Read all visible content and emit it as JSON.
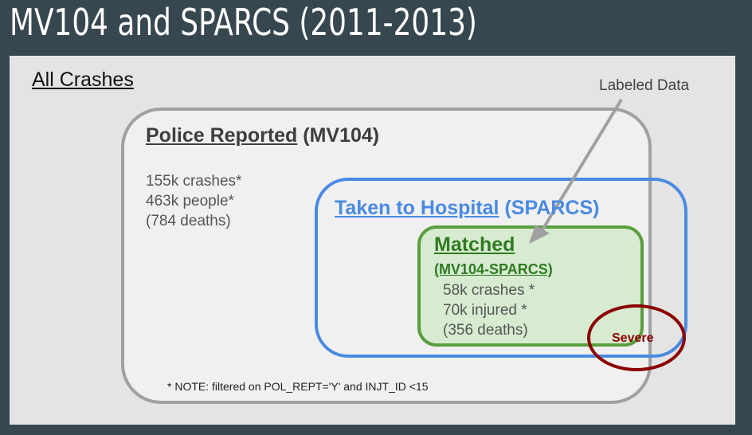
{
  "title": "MV104 and SPARCS (2011-2013)",
  "all_crashes": "All Crashes",
  "police": {
    "title_underlined": "Police Reported",
    "title_rest": " (MV104)",
    "stats": [
      "155k crashes*",
      "463k people*",
      "(784 deaths)"
    ]
  },
  "hospital": {
    "title_underlined": "Taken to Hospital",
    "title_rest": " (SPARCS)"
  },
  "matched": {
    "title": "Matched",
    "subtitle": "(MV104-SPARCS)",
    "stats": [
      "58k crashes *",
      "70k injured *",
      "(356 deaths)"
    ]
  },
  "labeled_data": "Labeled Data",
  "severe": "Severe",
  "note": "* NOTE: filtered on POL_REPT='Y' and INJT_ID <15",
  "colors": {
    "background": "#37474f",
    "panel": "#e4e4e4",
    "police_border": "#a0a0a0",
    "hospital_border": "#4a8ae2",
    "matched_border": "#5a9e3e",
    "matched_fill": "#d7ebd0",
    "severe_ring": "#8b0000"
  }
}
